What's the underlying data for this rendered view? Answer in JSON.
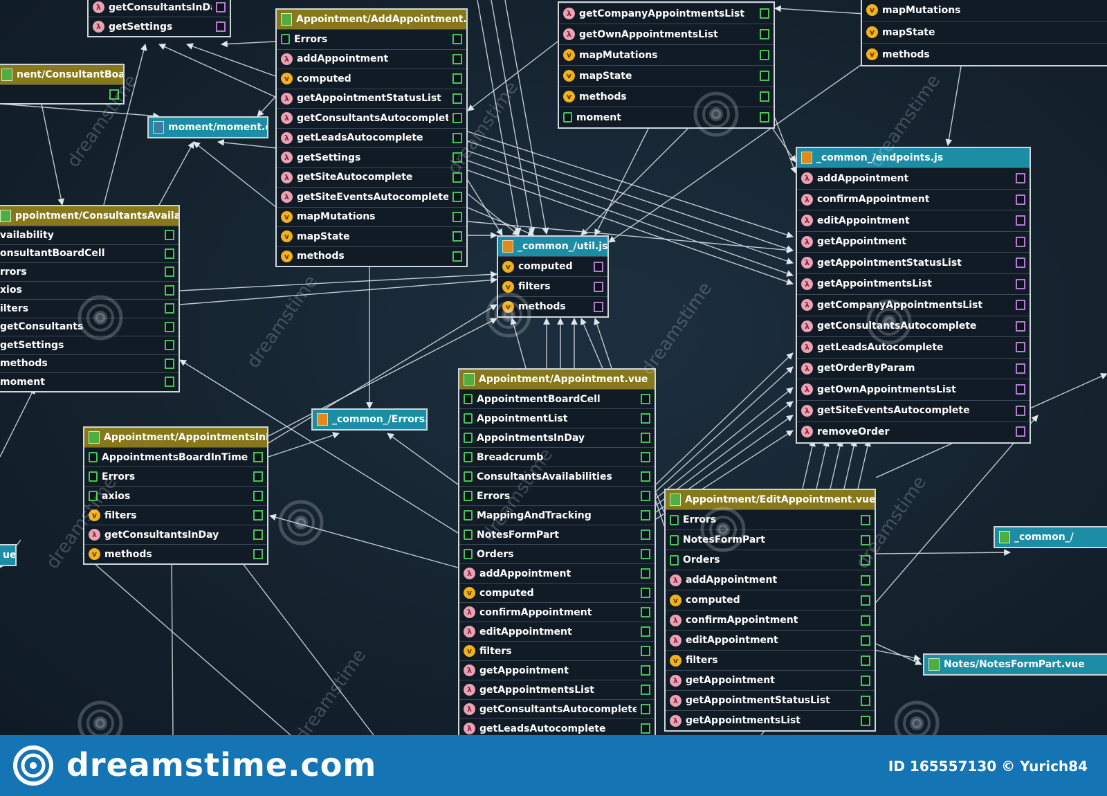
{
  "colors": {
    "background": "#142230",
    "olive_header": "#87781c",
    "teal_header": "#1b8ea6",
    "edge": "#dfe6ec",
    "footer": "#1474b4"
  },
  "nodes": {
    "consultants_in_day_top": {
      "rows": [
        {
          "label": "getConsultantsInDay",
          "kind": "lambda-icon"
        },
        {
          "label": "getSettings",
          "kind": "lambda-icon"
        }
      ]
    },
    "consultant_board_cell": {
      "title": "nent/ConsultantBoardCell.vue"
    },
    "moment": {
      "title": "moment/moment.d.ts"
    },
    "add_appointment": {
      "title": "Appointment/AddAppointment.vue",
      "rows": [
        {
          "label": "Errors",
          "kind": "import-icon"
        },
        {
          "label": "addAppointment",
          "kind": "lambda-icon"
        },
        {
          "label": "computed",
          "kind": "var-icon"
        },
        {
          "label": "getAppointmentStatusList",
          "kind": "lambda-icon"
        },
        {
          "label": "getConsultantsAutocomplete",
          "kind": "lambda-icon"
        },
        {
          "label": "getLeadsAutocomplete",
          "kind": "lambda-icon"
        },
        {
          "label": "getSettings",
          "kind": "lambda-icon"
        },
        {
          "label": "getSiteAutocomplete",
          "kind": "lambda-icon"
        },
        {
          "label": "getSiteEventsAutocomplete",
          "kind": "lambda-icon"
        },
        {
          "label": "mapMutations",
          "kind": "var-icon"
        },
        {
          "label": "mapState",
          "kind": "var-icon"
        },
        {
          "label": "methods",
          "kind": "var-icon"
        }
      ]
    },
    "company_list_node": {
      "rows": [
        {
          "label": "getCompanyAppointmentsList",
          "kind": "lambda-icon"
        },
        {
          "label": "getOwnAppointmentsList",
          "kind": "lambda-icon"
        },
        {
          "label": "mapMutations",
          "kind": "var-icon"
        },
        {
          "label": "mapState",
          "kind": "var-icon"
        },
        {
          "label": "methods",
          "kind": "var-icon"
        },
        {
          "label": "moment",
          "kind": "import-icon"
        }
      ]
    },
    "top_right_node": {
      "rows": [
        {
          "label": "mapMutations",
          "kind": "var-icon"
        },
        {
          "label": "mapState",
          "kind": "var-icon"
        },
        {
          "label": "methods",
          "kind": "var-icon"
        }
      ]
    },
    "endpoints": {
      "title": "_common_/endpoints.js",
      "rows": [
        {
          "label": "addAppointment",
          "kind": "lambda-icon"
        },
        {
          "label": "confirmAppointment",
          "kind": "lambda-icon"
        },
        {
          "label": "editAppointment",
          "kind": "lambda-icon"
        },
        {
          "label": "getAppointment",
          "kind": "lambda-icon"
        },
        {
          "label": "getAppointmentStatusList",
          "kind": "lambda-icon"
        },
        {
          "label": "getAppointmentsList",
          "kind": "lambda-icon"
        },
        {
          "label": "getCompanyAppointmentsList",
          "kind": "lambda-icon"
        },
        {
          "label": "getConsultantsAutocomplete",
          "kind": "lambda-icon"
        },
        {
          "label": "getLeadsAutocomplete",
          "kind": "lambda-icon"
        },
        {
          "label": "getOrderByParam",
          "kind": "lambda-icon"
        },
        {
          "label": "getOwnAppointmentsList",
          "kind": "lambda-icon"
        },
        {
          "label": "getSiteEventsAutocomplete",
          "kind": "lambda-icon"
        },
        {
          "label": "removeOrder",
          "kind": "lambda-icon"
        }
      ]
    },
    "util": {
      "title": "_common_/util.js",
      "rows": [
        {
          "label": "computed",
          "kind": "var-icon"
        },
        {
          "label": "filters",
          "kind": "var-icon"
        },
        {
          "label": "methods",
          "kind": "var-icon"
        }
      ]
    },
    "consultants_availabilities": {
      "title": "ppointment/ConsultantsAvailabilities.vue",
      "rows": [
        {
          "label": "vailability",
          "kind": "none"
        },
        {
          "label": "onsultantBoardCell",
          "kind": "none"
        },
        {
          "label": "rrors",
          "kind": "none"
        },
        {
          "label": "xios",
          "kind": "none"
        },
        {
          "label": "ilters",
          "kind": "none"
        },
        {
          "label": "getConsultants",
          "kind": "none"
        },
        {
          "label": "getSettings",
          "kind": "none"
        },
        {
          "label": "methods",
          "kind": "none"
        },
        {
          "label": "moment",
          "kind": "none"
        }
      ]
    },
    "errors": {
      "title": "_common_/Errors.js"
    },
    "appointments_in_day": {
      "title": "Appointment/AppointmentsInDay.vue",
      "rows": [
        {
          "label": "AppointmentsBoardInTime",
          "kind": "import-icon"
        },
        {
          "label": "Errors",
          "kind": "import-icon"
        },
        {
          "label": "axios",
          "kind": "import-icon"
        },
        {
          "label": "filters",
          "kind": "var-icon"
        },
        {
          "label": "getConsultantsInDay",
          "kind": "lambda-icon"
        },
        {
          "label": "methods",
          "kind": "var-icon"
        }
      ]
    },
    "left_edge_stub": {
      "title": "ue"
    },
    "appointment": {
      "title": "Appointment/Appointment.vue",
      "rows": [
        {
          "label": "AppointmentBoardCell",
          "kind": "import-icon"
        },
        {
          "label": "AppointmentList",
          "kind": "import-icon"
        },
        {
          "label": "AppointmentsInDay",
          "kind": "import-icon"
        },
        {
          "label": "Breadcrumb",
          "kind": "import-icon"
        },
        {
          "label": "ConsultantsAvailabilities",
          "kind": "import-icon"
        },
        {
          "label": "Errors",
          "kind": "import-icon"
        },
        {
          "label": "MappingAndTracking",
          "kind": "import-icon"
        },
        {
          "label": "NotesFormPart",
          "kind": "import-icon"
        },
        {
          "label": "Orders",
          "kind": "import-icon"
        },
        {
          "label": "addAppointment",
          "kind": "lambda-icon"
        },
        {
          "label": "computed",
          "kind": "var-icon"
        },
        {
          "label": "confirmAppointment",
          "kind": "lambda-icon"
        },
        {
          "label": "editAppointment",
          "kind": "lambda-icon"
        },
        {
          "label": "filters",
          "kind": "var-icon"
        },
        {
          "label": "getAppointment",
          "kind": "lambda-icon"
        },
        {
          "label": "getAppointmentsList",
          "kind": "lambda-icon"
        },
        {
          "label": "getConsultantsAutocomplete",
          "kind": "lambda-icon"
        },
        {
          "label": "getLeadsAutocomplete",
          "kind": "lambda-icon"
        }
      ]
    },
    "edit_appointment": {
      "title": "Appointment/EditAppointment.vue",
      "rows": [
        {
          "label": "Errors",
          "kind": "import-icon"
        },
        {
          "label": "NotesFormPart",
          "kind": "import-icon"
        },
        {
          "label": "Orders",
          "kind": "import-icon"
        },
        {
          "label": "addAppointment",
          "kind": "lambda-icon"
        },
        {
          "label": "computed",
          "kind": "var-icon"
        },
        {
          "label": "confirmAppointment",
          "kind": "lambda-icon"
        },
        {
          "label": "editAppointment",
          "kind": "lambda-icon"
        },
        {
          "label": "filters",
          "kind": "var-icon"
        },
        {
          "label": "getAppointment",
          "kind": "lambda-icon"
        },
        {
          "label": "getAppointmentStatusList",
          "kind": "lambda-icon"
        },
        {
          "label": "getAppointmentsList",
          "kind": "lambda-icon"
        }
      ]
    },
    "common_right": {
      "title": "_common_/"
    },
    "notes_form_part": {
      "title": "Notes/NotesFormPart.vue"
    }
  },
  "watermark": {
    "word": "dreamstime",
    "brand": "dreamstime.com",
    "credit": "ID 165557130 © Yurich84"
  }
}
